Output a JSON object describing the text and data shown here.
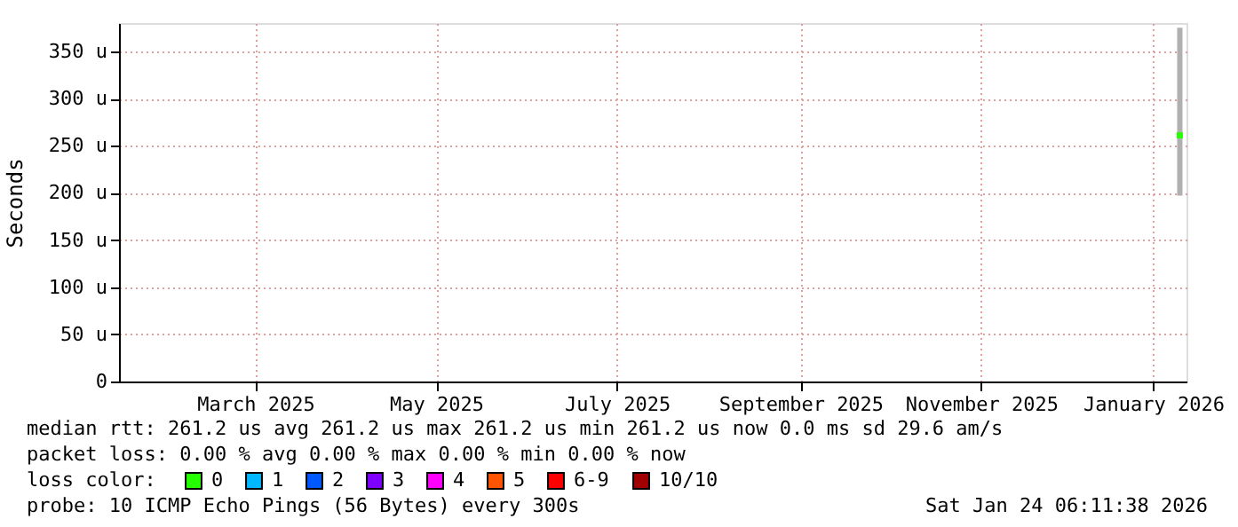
{
  "chart_data": {
    "type": "line",
    "ylabel": "Seconds",
    "x": [
      "2026-01-22"
    ],
    "xlim": [
      "2025-01-29",
      "2026-01-24T06:11"
    ],
    "xticks": [
      {
        "value": "2025-03-16",
        "label": "March 2025"
      },
      {
        "value": "2025-05-16",
        "label": "May 2025"
      },
      {
        "value": "2025-07-16",
        "label": "July 2025"
      },
      {
        "value": "2025-09-16",
        "label": "September 2025"
      },
      {
        "value": "2025-11-16",
        "label": "November 2025"
      },
      {
        "value": "2026-01-13",
        "label": "January 2026"
      }
    ],
    "ylim": [
      0,
      380
    ],
    "yticks": [
      0,
      {
        "value": 50,
        "label": "50 u"
      },
      {
        "value": 100,
        "label": "100 u"
      },
      {
        "value": 150,
        "label": "150 u"
      },
      {
        "value": 200,
        "label": "200 u"
      },
      {
        "value": 250,
        "label": "250 u"
      },
      {
        "value": 300,
        "label": "300 u"
      },
      {
        "value": 350,
        "label": "350 u"
      }
    ],
    "grid": true,
    "marker": "square",
    "legend": "bottom",
    "legend_title": "loss color:",
    "series": [
      {
        "name": "0",
        "color": "#26ff00",
        "values": [
          261
        ],
        "errors": [
          [
            197,
            375
          ]
        ]
      },
      {
        "name": "1",
        "color": "#00b8ff",
        "values": [
          null
        ]
      },
      {
        "name": "2",
        "color": "#0059ff",
        "values": [
          null
        ]
      },
      {
        "name": "3",
        "color": "#7e00ff",
        "values": [
          null
        ]
      },
      {
        "name": "4",
        "color": "#ff00ff",
        "values": [
          null
        ]
      },
      {
        "name": "5",
        "color": "#ff5500",
        "values": [
          null
        ]
      },
      {
        "name": "6-9",
        "color": "#ff0000",
        "values": [
          null
        ]
      },
      {
        "name": "10/10",
        "color": "#a10000",
        "values": [
          null
        ]
      }
    ],
    "annotations": [
      "median rtt:  261.2 us avg  261.2 us max  261.2 us min  261.2 us now  0.0 ms sd  29.6   am/s",
      "packet loss: 0.00 % avg  0.00 % max  0.00 % min  0.00 % now",
      "probe:       10 ICMP Echo Pings (56 Bytes) every 300s",
      "Sat Jan 24 06:11:38 2026"
    ]
  }
}
